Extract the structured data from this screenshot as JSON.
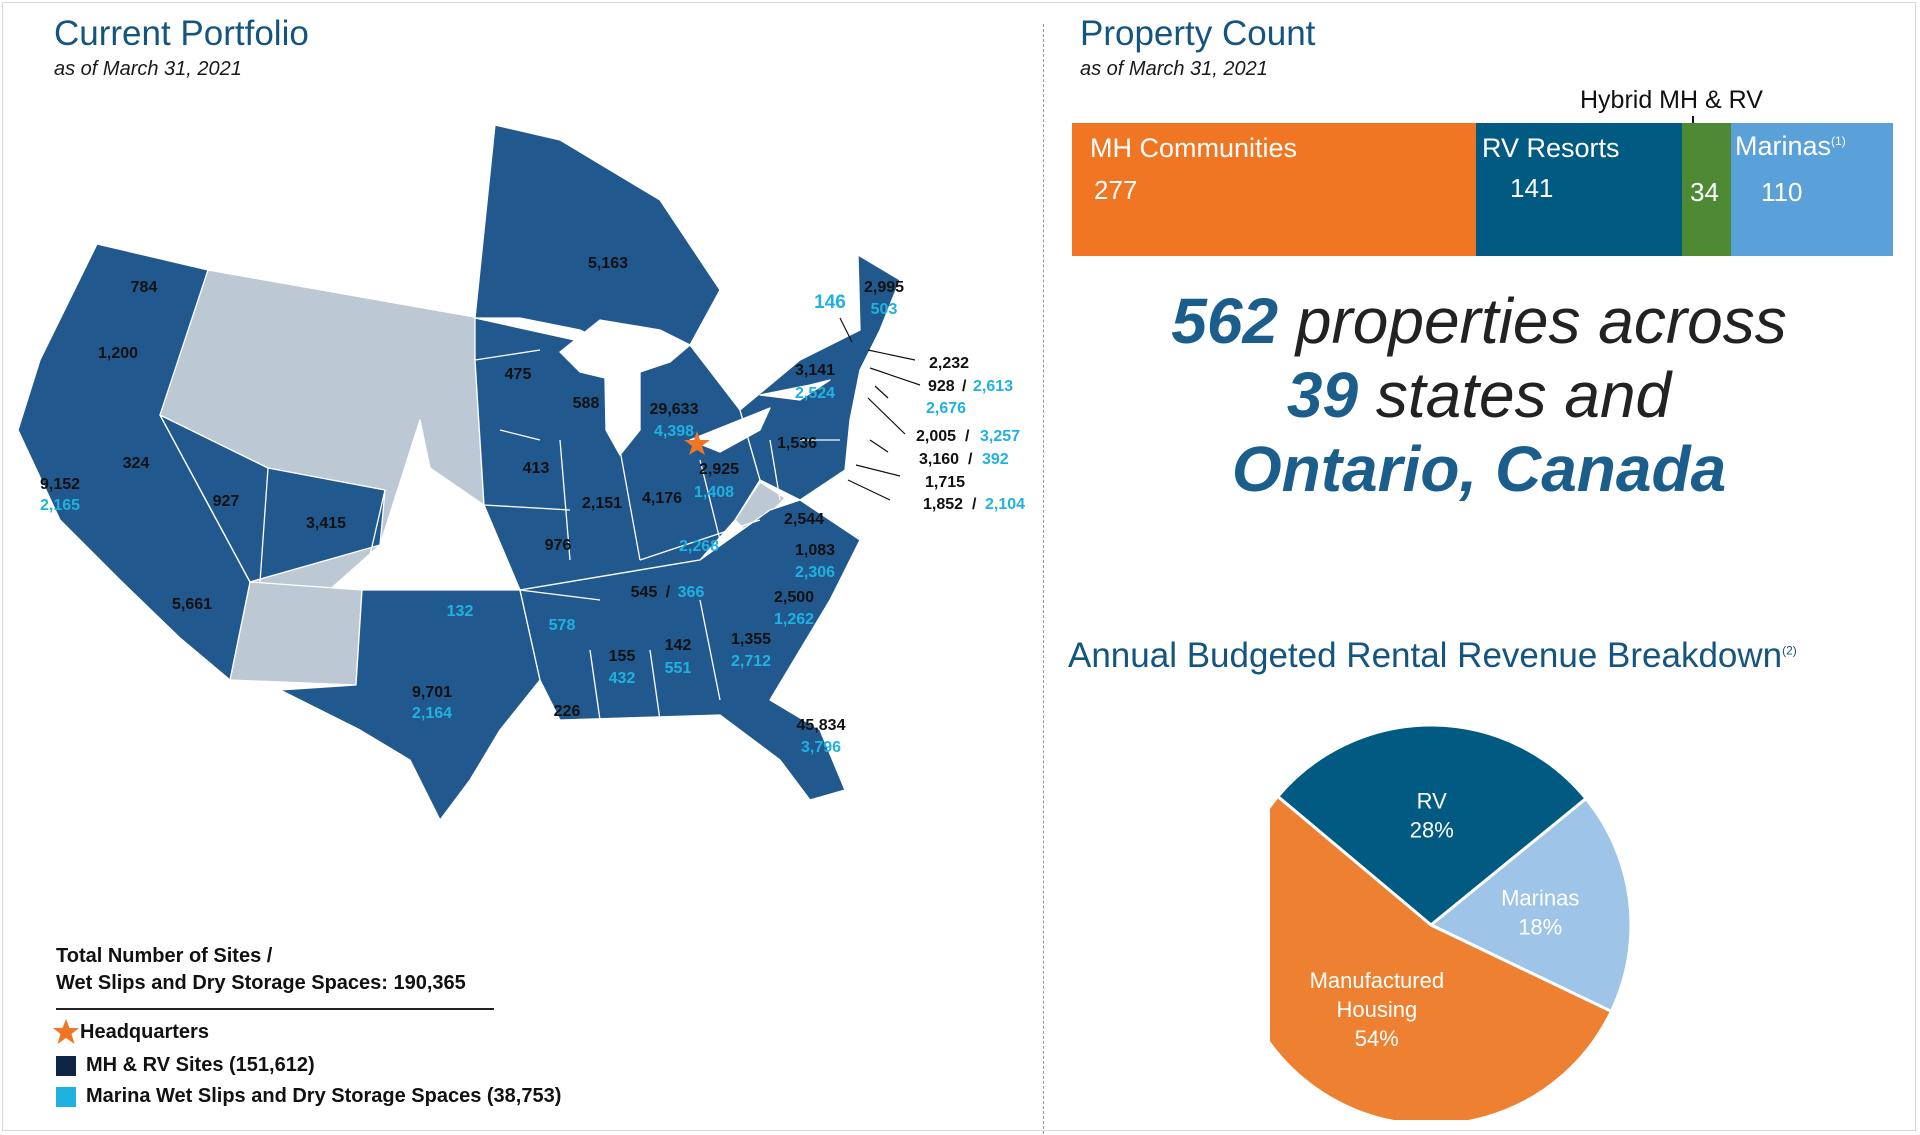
{
  "left": {
    "title": "Current Portfolio",
    "subtitle": "as of March 31, 2021",
    "map_labels": [
      {
        "id": "wa",
        "text": "784"
      },
      {
        "id": "or",
        "text": "1,200"
      },
      {
        "id": "ca1",
        "text": "9,152"
      },
      {
        "id": "ca2",
        "text": "2,165"
      },
      {
        "id": "nv",
        "text": "324"
      },
      {
        "id": "ut",
        "text": "927"
      },
      {
        "id": "co",
        "text": "3,415"
      },
      {
        "id": "az",
        "text": "5,661"
      },
      {
        "id": "tx1",
        "text": "9,701"
      },
      {
        "id": "tx2",
        "text": "2,164"
      },
      {
        "id": "ok",
        "text": "132"
      },
      {
        "id": "on",
        "text": "5,163"
      },
      {
        "id": "mn",
        "text": "475"
      },
      {
        "id": "wi",
        "text": "588"
      },
      {
        "id": "ia",
        "text": "413"
      },
      {
        "id": "mo",
        "text": "976"
      },
      {
        "id": "il",
        "text": "2,151"
      },
      {
        "id": "in",
        "text": "4,176"
      },
      {
        "id": "mi1",
        "text": "29,633"
      },
      {
        "id": "mi2",
        "text": "4,398"
      },
      {
        "id": "oh1",
        "text": "2,925"
      },
      {
        "id": "oh2",
        "text": "1,408"
      },
      {
        "id": "ky",
        "text": "2,268"
      },
      {
        "id": "tn1",
        "text": "545"
      },
      {
        "id": "tn_sl",
        "text": "/"
      },
      {
        "id": "tn2",
        "text": "366"
      },
      {
        "id": "ar",
        "text": "578"
      },
      {
        "id": "ms1",
        "text": "155"
      },
      {
        "id": "ms2",
        "text": "432"
      },
      {
        "id": "al1",
        "text": "142"
      },
      {
        "id": "al2",
        "text": "551"
      },
      {
        "id": "la",
        "text": "226"
      },
      {
        "id": "ga1",
        "text": "1,355"
      },
      {
        "id": "ga2",
        "text": "2,712"
      },
      {
        "id": "sc1",
        "text": "2,500"
      },
      {
        "id": "sc2",
        "text": "1,262"
      },
      {
        "id": "nc1",
        "text": "1,083"
      },
      {
        "id": "nc2",
        "text": "2,306"
      },
      {
        "id": "va",
        "text": "2,544"
      },
      {
        "id": "fl1",
        "text": "45,834"
      },
      {
        "id": "fl2",
        "text": "3,796"
      },
      {
        "id": "pa",
        "text": "1,536"
      },
      {
        "id": "ny1",
        "text": "3,141"
      },
      {
        "id": "ny2",
        "text": "2,524"
      },
      {
        "id": "vt",
        "text": "146"
      },
      {
        "id": "me1",
        "text": "2,995"
      },
      {
        "id": "me2",
        "text": "503"
      },
      {
        "id": "nh",
        "text": "2,232"
      },
      {
        "id": "ma1",
        "text": "928"
      },
      {
        "id": "ma_sl",
        "text": "/"
      },
      {
        "id": "ma2",
        "text": "2,613"
      },
      {
        "id": "ri",
        "text": "2,676"
      },
      {
        "id": "ct1",
        "text": "2,005"
      },
      {
        "id": "ct_sl",
        "text": "/"
      },
      {
        "id": "ct2",
        "text": "3,257"
      },
      {
        "id": "nj1",
        "text": "3,160"
      },
      {
        "id": "nj_sl",
        "text": "/"
      },
      {
        "id": "nj2",
        "text": "392"
      },
      {
        "id": "de",
        "text": "1,715"
      },
      {
        "id": "md1",
        "text": "1,852"
      },
      {
        "id": "md_sl",
        "text": "/"
      },
      {
        "id": "md2",
        "text": "2,104"
      }
    ],
    "legend": {
      "total_line1": "Total Number of Sites /",
      "total_line2": "Wet Slips and Dry Storage Spaces: 190,365",
      "hq": "Headquarters",
      "mhrv": "MH & RV Sites (151,612)",
      "marina": "Marina Wet Slips and Dry Storage Spaces (38,753)"
    }
  },
  "right": {
    "title": "Property Count",
    "subtitle": "as of March 31, 2021",
    "hybrid_label": "Hybrid MH & RV",
    "bars": [
      {
        "name": "MH Communities",
        "value": "277",
        "color": "#f07624"
      },
      {
        "name": "RV Resorts",
        "value": "141",
        "color": "#005a82"
      },
      {
        "name": "",
        "value": "34",
        "color": "#4e8a34"
      },
      {
        "name": "Marinas",
        "value": "110",
        "color": "#5aa0d9",
        "sup": "(1)"
      }
    ],
    "headline": {
      "l1_num": "562",
      "l1_txt": " properties across",
      "l2_num": "39",
      "l2_txt": " states and",
      "l3": "Ontario, Canada"
    },
    "pie_title": "Annual Budgeted Rental Revenue Breakdown",
    "pie_sup": "(2)"
  },
  "chart_data": {
    "type": "pie",
    "title": "Annual Budgeted Rental Revenue Breakdown",
    "slices": [
      {
        "label": "RV",
        "value": 28,
        "pct": "28%",
        "color": "#005a82"
      },
      {
        "label": "Marinas",
        "value": 18,
        "pct": "18%",
        "color": "#9ec4e8"
      },
      {
        "label": "Manufactured Housing",
        "value": 54,
        "pct": "54%",
        "color": "#ee8131"
      }
    ]
  }
}
